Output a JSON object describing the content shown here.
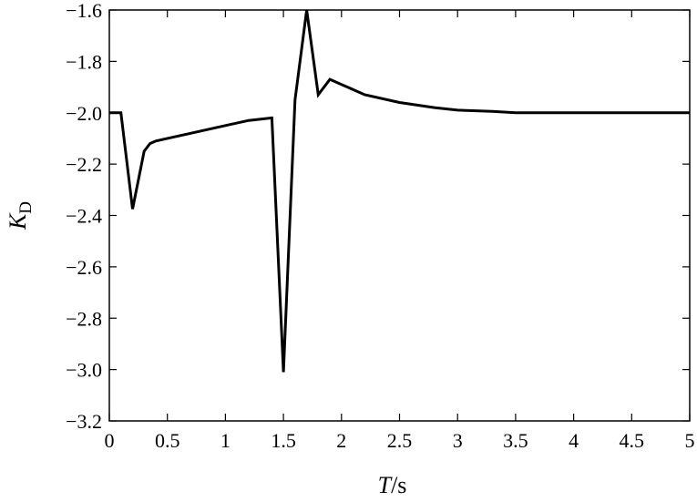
{
  "chart_data": {
    "type": "line",
    "xlabel": "T/s",
    "xlabel_var": "T",
    "xlabel_unit": "/s",
    "ylabel": "K_D",
    "ylabel_var": "K",
    "ylabel_sub": "D",
    "xlim": [
      0,
      5
    ],
    "ylim": [
      -3.2,
      -1.6
    ],
    "grid": false,
    "x_ticks": [
      0,
      0.5,
      1,
      1.5,
      2,
      2.5,
      3,
      3.5,
      4,
      4.5,
      5
    ],
    "x_tick_labels": [
      "0",
      "0.5",
      "1",
      "1.5",
      "2",
      "2.5",
      "3",
      "3.5",
      "4",
      "4.5",
      "5"
    ],
    "y_ticks": [
      -3.2,
      -3.0,
      -2.8,
      -2.6,
      -2.4,
      -2.2,
      -2.0,
      -1.8,
      -1.6
    ],
    "y_tick_labels": [
      "−3.2",
      "−3.0",
      "−2.8",
      "−2.6",
      "−2.4",
      "−2.2",
      "−2.0",
      "−1.8",
      "−1.6"
    ],
    "series": [
      {
        "color": "#000000",
        "x": [
          0,
          0.1,
          0.2,
          0.3,
          0.35,
          0.4,
          0.5,
          0.7,
          1.0,
          1.2,
          1.4,
          1.5,
          1.6,
          1.7,
          1.8,
          1.9,
          2.0,
          2.2,
          2.5,
          2.8,
          3.0,
          3.3,
          3.5,
          4.0,
          4.5,
          5.0
        ],
        "y": [
          -2.0,
          -2.0,
          -2.375,
          -2.15,
          -2.12,
          -2.11,
          -2.1,
          -2.08,
          -2.05,
          -2.03,
          -2.02,
          -3.01,
          -1.95,
          -1.6,
          -1.93,
          -1.87,
          -1.89,
          -1.93,
          -1.96,
          -1.98,
          -1.99,
          -1.995,
          -2.0,
          -2.0,
          -2.0,
          -2.0
        ]
      }
    ]
  }
}
